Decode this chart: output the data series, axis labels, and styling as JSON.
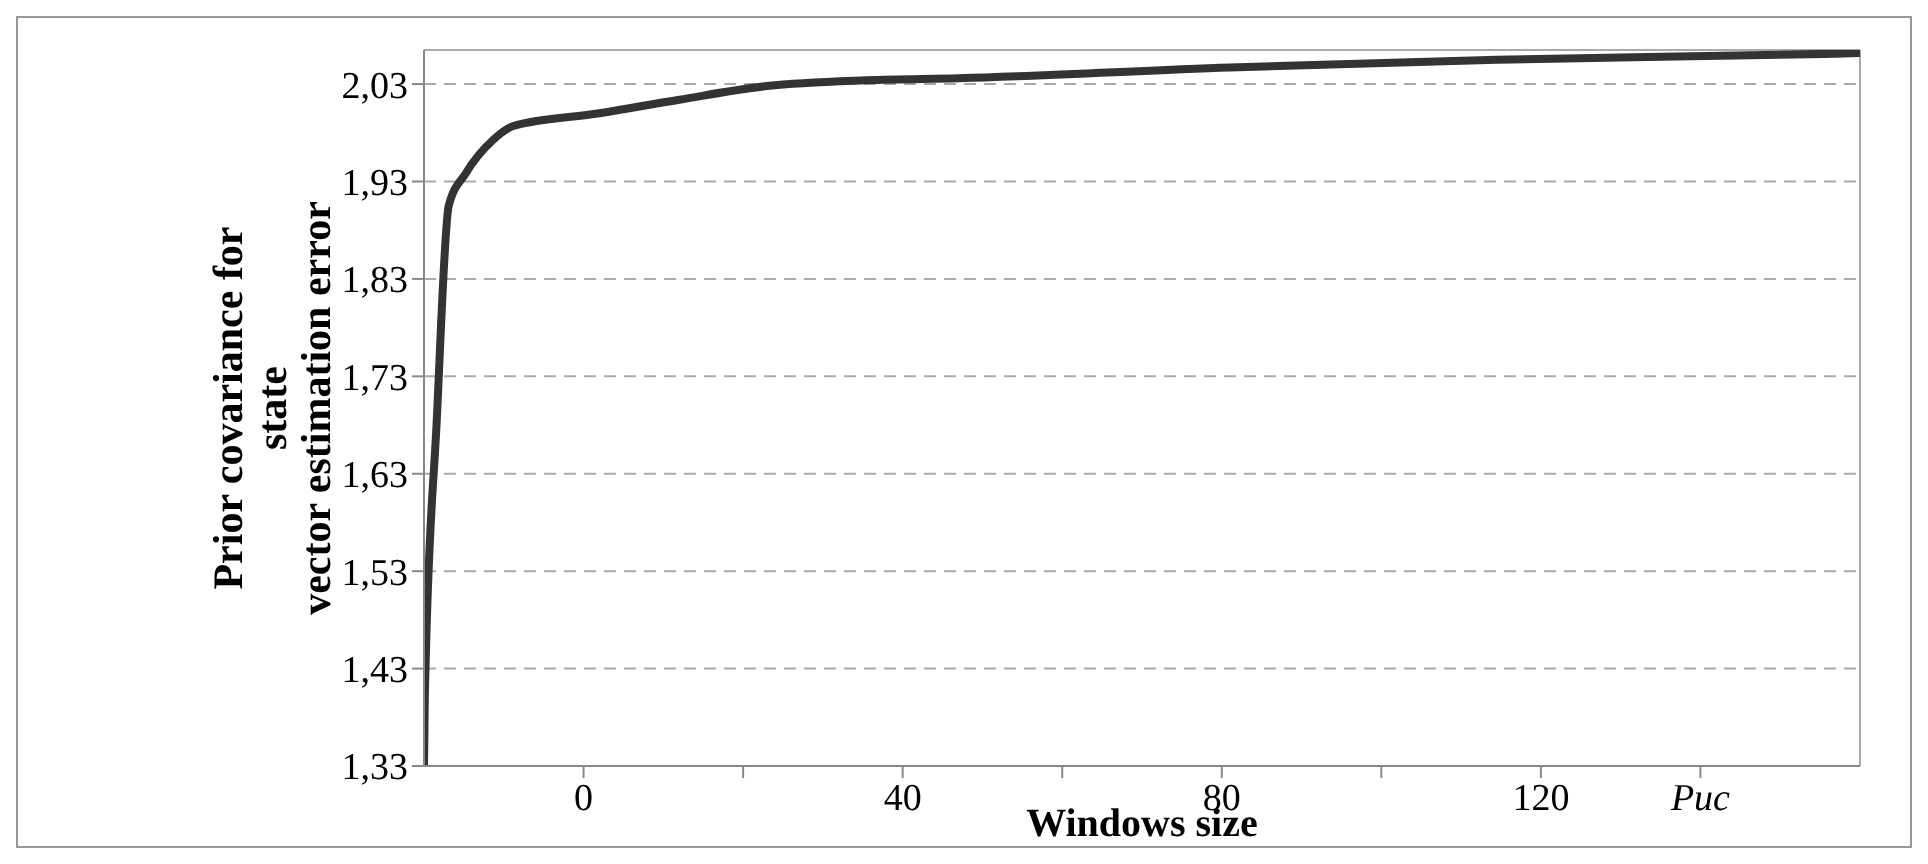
{
  "chart_data": {
    "type": "line",
    "xlabel": "Windows size",
    "ylabel": "Prior covariance for\nstate\nvector estimation error",
    "x": [
      -20,
      -19.9,
      -18.4,
      -16.9,
      -14.8,
      -11.3,
      -8.8,
      2,
      12,
      23,
      35.5,
      47,
      81,
      114.5,
      155.5,
      160
    ],
    "series": [
      {
        "color": "#333333",
        "values": [
          1.33,
          1.4,
          1.685,
          1.905,
          1.938,
          1.973,
          1.987,
          2.0,
          2.014,
          2.028,
          2.034,
          2.036,
          2.047,
          2.055,
          2.061,
          2.062
        ]
      }
    ],
    "xlim": [
      -20,
      160
    ],
    "xticks": [
      0,
      {
        "value": 20,
        "label": null
      },
      40,
      {
        "value": 60,
        "label": null
      },
      80,
      {
        "value": 100,
        "label": null
      },
      120,
      {
        "value": 140,
        "label": "Рис"
      }
    ],
    "ylim": [
      1.33,
      2.065
    ],
    "yticks": [
      {
        "value": 1.33,
        "label": "1,33"
      },
      {
        "value": 1.43,
        "label": "1,43"
      },
      {
        "value": 1.53,
        "label": "1,53"
      },
      {
        "value": 1.63,
        "label": "1,63"
      },
      {
        "value": 1.73,
        "label": "1,73"
      },
      {
        "value": 1.83,
        "label": "1,83"
      },
      {
        "value": 1.93,
        "label": "1,93"
      },
      {
        "value": 2.03,
        "label": "2,03"
      }
    ],
    "grid": "y",
    "marker": "none",
    "line_style": "solid"
  }
}
